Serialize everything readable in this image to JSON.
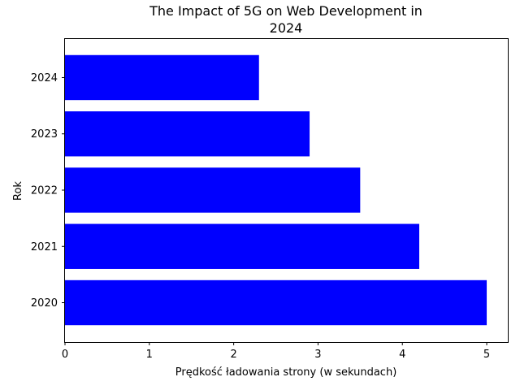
{
  "chart_data": {
    "type": "bar",
    "orientation": "horizontal",
    "title_line1": "The Impact of 5G on Web Development in",
    "title_line2": "2024",
    "xlabel": "Prędkość ładowania strony (w sekundach)",
    "ylabel": "Rok",
    "categories": [
      "2020",
      "2021",
      "2022",
      "2023",
      "2024"
    ],
    "values": [
      5.0,
      4.2,
      3.5,
      2.9,
      2.3
    ],
    "xlim": [
      0,
      5.25
    ],
    "xticks": [
      "0",
      "1",
      "2",
      "3",
      "4",
      "5"
    ],
    "grid": false,
    "bar_color": "#0000ff"
  }
}
